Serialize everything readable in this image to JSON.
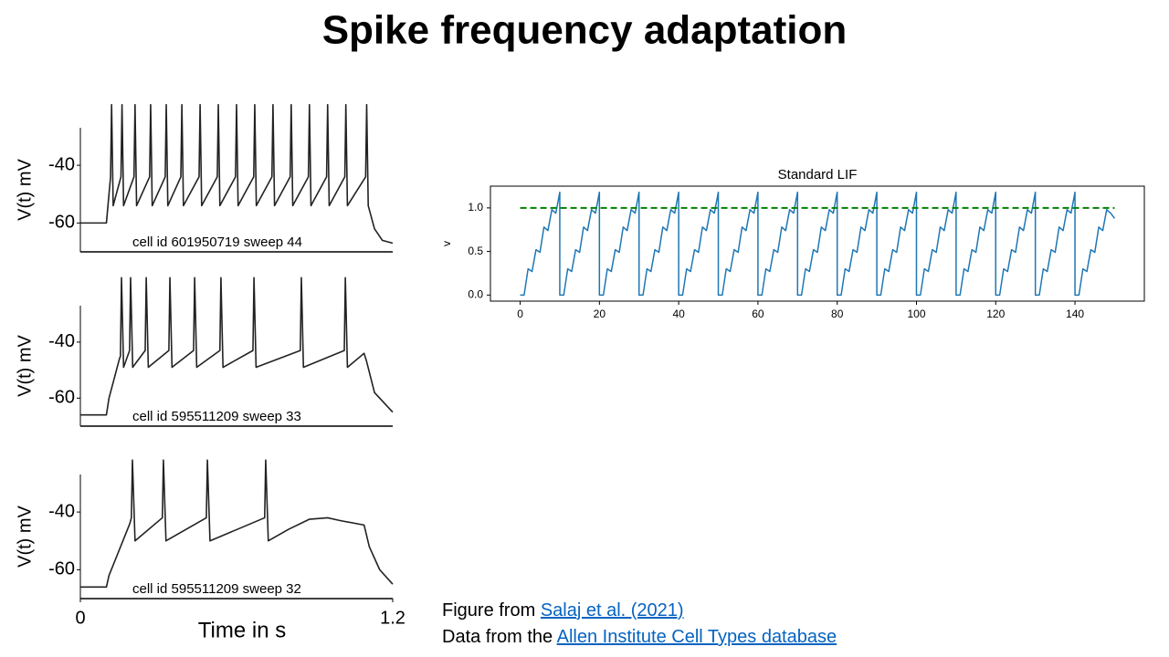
{
  "title": "Spike frequency adaptation",
  "chart_data": [
    {
      "type": "line",
      "ylabel": "V(t) mV",
      "annotation": "cell id 601950719 sweep 44",
      "xlim": [
        0,
        1.2
      ],
      "ylim": [
        -70,
        -27
      ],
      "yticks": [
        -60,
        -40
      ],
      "series": [
        {
          "color": "#222222",
          "x": [
            0,
            0.1,
            0.11,
            0.116,
            0.12,
            0.126,
            0.156,
            0.16,
            0.166,
            0.206,
            0.21,
            0.216,
            0.266,
            0.27,
            0.276,
            0.326,
            0.33,
            0.336,
            0.386,
            0.39,
            0.396,
            0.456,
            0.46,
            0.466,
            0.526,
            0.53,
            0.536,
            0.596,
            0.6,
            0.606,
            0.666,
            0.67,
            0.676,
            0.736,
            0.74,
            0.746,
            0.806,
            0.81,
            0.816,
            0.876,
            0.88,
            0.886,
            0.946,
            0.95,
            0.956,
            1.016,
            1.02,
            1.026,
            1.096,
            1.1,
            1.106,
            1.13,
            1.16,
            1.2
          ],
          "values": [
            -60,
            -60,
            -50,
            -44,
            -19,
            -54,
            -44,
            -19,
            -54,
            -44,
            -19,
            -54,
            -44,
            -19,
            -54,
            -44,
            -19,
            -54,
            -44,
            -19,
            -54,
            -44,
            -19,
            -54,
            -44,
            -19,
            -54,
            -44,
            -19,
            -54,
            -44,
            -19,
            -54,
            -44,
            -19,
            -54,
            -44,
            -19,
            -54,
            -44,
            -19,
            -54,
            -44,
            -19,
            -54,
            -44,
            -19,
            -54,
            -44,
            -19,
            -54,
            -62,
            -66,
            -67
          ]
        }
      ]
    },
    {
      "type": "line",
      "ylabel": "V(t) mV",
      "annotation": "cell id 595511209 sweep 33",
      "xlim": [
        0,
        1.2
      ],
      "ylim": [
        -70,
        -27
      ],
      "yticks": [
        -60,
        -40
      ],
      "series": [
        {
          "color": "#222222",
          "x": [
            0,
            0.1,
            0.11,
            0.15,
            0.154,
            0.158,
            0.166,
            0.189,
            0.193,
            0.201,
            0.249,
            0.253,
            0.261,
            0.34,
            0.344,
            0.352,
            0.435,
            0.439,
            0.447,
            0.536,
            0.54,
            0.548,
            0.663,
            0.667,
            0.675,
            0.845,
            0.849,
            0.857,
            1.014,
            1.018,
            1.026,
            1.09,
            1.1,
            1.13,
            1.2
          ],
          "values": [
            -66,
            -66,
            -60,
            -46,
            -45,
            -17,
            -49,
            -43,
            -17,
            -49,
            -43,
            -17,
            -49,
            -43,
            -17,
            -49,
            -43,
            -17,
            -49,
            -43,
            -17,
            -49,
            -43,
            -17,
            -49,
            -43,
            -17,
            -49,
            -43,
            -17,
            -49,
            -44,
            -47,
            -58,
            -65
          ]
        }
      ]
    },
    {
      "type": "line",
      "ylabel": "V(t) mV",
      "xlabel": "Time in s",
      "annotation": "cell id 595511209 sweep 32",
      "xlim": [
        0,
        1.2
      ],
      "xticks": [
        0,
        1.2
      ],
      "ylim": [
        -70,
        -27
      ],
      "yticks": [
        -60,
        -40
      ],
      "series": [
        {
          "color": "#222222",
          "x": [
            0,
            0.1,
            0.11,
            0.19,
            0.196,
            0.2,
            0.21,
            0.315,
            0.319,
            0.329,
            0.484,
            0.488,
            0.498,
            0.708,
            0.712,
            0.722,
            0.8,
            0.88,
            0.95,
            1.0,
            1.09,
            1.11,
            1.15,
            1.2
          ],
          "values": [
            -66,
            -66,
            -62,
            -44,
            -42,
            -22,
            -50,
            -42,
            -22,
            -50,
            -42,
            -22,
            -50,
            -42,
            -22,
            -50,
            -46,
            -42.5,
            -42,
            -43,
            -44.5,
            -52,
            -60,
            -65
          ]
        }
      ]
    },
    {
      "type": "line",
      "title": "Standard LIF",
      "ylabel": "v",
      "xlim": [
        -7.5,
        157.5
      ],
      "xticks": [
        0,
        20,
        40,
        60,
        80,
        100,
        120,
        140
      ],
      "ylim": [
        -0.07,
        1.25
      ],
      "yticks": [
        {
          "value": 0,
          "label": "0.0"
        },
        0.5,
        {
          "value": 1,
          "label": "1.0"
        }
      ],
      "series": [
        {
          "color": "#1f77b4",
          "linestyle": "solid",
          "x": [
            0,
            1,
            2,
            3,
            4,
            5,
            6,
            7,
            8,
            9,
            10,
            10,
            11,
            12,
            13,
            14,
            15,
            16,
            17,
            18,
            19,
            20,
            20,
            21,
            22,
            23,
            24,
            25,
            26,
            27,
            28,
            29,
            30,
            30,
            31,
            32,
            33,
            34,
            35,
            36,
            37,
            38,
            39,
            40,
            40,
            41,
            42,
            43,
            44,
            45,
            46,
            47,
            48,
            49,
            50,
            50,
            51,
            52,
            53,
            54,
            55,
            56,
            57,
            58,
            59,
            60,
            60,
            61,
            62,
            63,
            64,
            65,
            66,
            67,
            68,
            69,
            70,
            70,
            71,
            72,
            73,
            74,
            75,
            76,
            77,
            78,
            79,
            80,
            80,
            81,
            82,
            83,
            84,
            85,
            86,
            87,
            88,
            89,
            90,
            90,
            91,
            92,
            93,
            94,
            95,
            96,
            97,
            98,
            99,
            100,
            100,
            101,
            102,
            103,
            104,
            105,
            106,
            107,
            108,
            109,
            110,
            110,
            111,
            112,
            113,
            114,
            115,
            116,
            117,
            118,
            119,
            120,
            120,
            121,
            122,
            123,
            124,
            125,
            126,
            127,
            128,
            129,
            130,
            130,
            131,
            132,
            133,
            134,
            135,
            136,
            137,
            138,
            139,
            140,
            140,
            141,
            142,
            143,
            144,
            145,
            146,
            147,
            148,
            149,
            150
          ],
          "values": [
            0,
            0,
            0.3,
            0.27,
            0.52,
            0.49,
            0.78,
            0.74,
            0.98,
            0.94,
            1.18,
            0,
            0,
            0.3,
            0.27,
            0.52,
            0.49,
            0.78,
            0.74,
            0.98,
            0.94,
            1.18,
            0,
            0,
            0.3,
            0.27,
            0.52,
            0.49,
            0.78,
            0.74,
            0.98,
            0.94,
            1.18,
            0,
            0,
            0.3,
            0.27,
            0.52,
            0.49,
            0.78,
            0.74,
            0.98,
            0.94,
            1.18,
            0,
            0,
            0.3,
            0.27,
            0.52,
            0.49,
            0.78,
            0.74,
            0.98,
            0.94,
            1.18,
            0,
            0,
            0.3,
            0.27,
            0.52,
            0.49,
            0.78,
            0.74,
            0.98,
            0.94,
            1.18,
            0,
            0,
            0.3,
            0.27,
            0.52,
            0.49,
            0.78,
            0.74,
            0.98,
            0.94,
            1.18,
            0,
            0,
            0.3,
            0.27,
            0.52,
            0.49,
            0.78,
            0.74,
            0.98,
            0.94,
            1.18,
            0,
            0,
            0.3,
            0.27,
            0.52,
            0.49,
            0.78,
            0.74,
            0.98,
            0.94,
            1.18,
            0,
            0,
            0.3,
            0.27,
            0.52,
            0.49,
            0.78,
            0.74,
            0.98,
            0.94,
            1.18,
            0,
            0,
            0.3,
            0.27,
            0.52,
            0.49,
            0.78,
            0.74,
            0.98,
            0.94,
            1.18,
            0,
            0,
            0.3,
            0.27,
            0.52,
            0.49,
            0.78,
            0.74,
            0.98,
            0.94,
            1.18,
            0,
            0,
            0.3,
            0.27,
            0.52,
            0.49,
            0.78,
            0.74,
            0.98,
            0.94,
            1.18,
            0,
            0,
            0.3,
            0.27,
            0.52,
            0.49,
            0.78,
            0.74,
            0.98,
            0.94,
            1.18,
            0,
            0,
            0.3,
            0.27,
            0.52,
            0.49,
            0.78,
            0.74,
            0.98,
            0.94,
            0.88
          ]
        },
        {
          "color": "#008000",
          "linestyle": "dashed",
          "x": [
            0,
            150
          ],
          "values": [
            1,
            1
          ]
        }
      ]
    }
  ],
  "footer": {
    "line1": {
      "text": "Figure from",
      "link": "Salaj et al. (2021)"
    },
    "line2": {
      "text": "Data from the",
      "link": "Allen Institute Cell Types database"
    }
  }
}
